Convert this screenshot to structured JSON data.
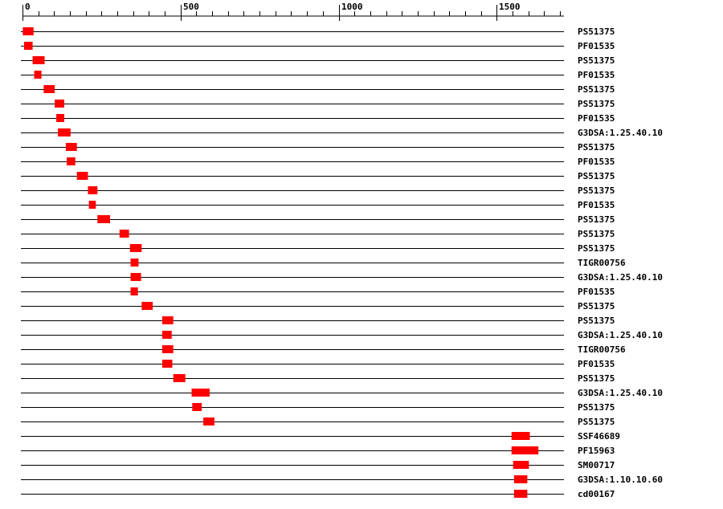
{
  "chart_data": {
    "type": "feature-map",
    "axis": {
      "min": 0,
      "max": 1680,
      "major_ticks": [
        0,
        500,
        1000,
        1500
      ],
      "minor_step": 50
    },
    "bar_color": "#ff0000",
    "line_color": "#000000",
    "tracks": [
      {
        "label": "PS51375",
        "start": 1,
        "end": 35
      },
      {
        "label": "PF01535",
        "start": 5,
        "end": 32
      },
      {
        "label": "PS51375",
        "start": 32,
        "end": 70
      },
      {
        "label": "PF01535",
        "start": 37,
        "end": 60
      },
      {
        "label": "PS51375",
        "start": 67,
        "end": 102
      },
      {
        "label": "PS51375",
        "start": 102,
        "end": 132
      },
      {
        "label": "PF01535",
        "start": 107,
        "end": 132
      },
      {
        "label": "G3DSA:1.25.40.10",
        "start": 112,
        "end": 152
      },
      {
        "label": "PS51375",
        "start": 137,
        "end": 172
      },
      {
        "label": "PF01535",
        "start": 140,
        "end": 167
      },
      {
        "label": "PS51375",
        "start": 172,
        "end": 207
      },
      {
        "label": "PS51375",
        "start": 207,
        "end": 237
      },
      {
        "label": "PF01535",
        "start": 210,
        "end": 232
      },
      {
        "label": "PS51375",
        "start": 237,
        "end": 277
      },
      {
        "label": "PS51375",
        "start": 307,
        "end": 337
      },
      {
        "label": "PS51375",
        "start": 340,
        "end": 377
      },
      {
        "label": "TIGR00756",
        "start": 342,
        "end": 367
      },
      {
        "label": "G3DSA:1.25.40.10",
        "start": 342,
        "end": 375
      },
      {
        "label": "PF01535",
        "start": 342,
        "end": 365
      },
      {
        "label": "PS51375",
        "start": 377,
        "end": 412
      },
      {
        "label": "PS51375",
        "start": 442,
        "end": 477
      },
      {
        "label": "G3DSA:1.25.40.10",
        "start": 442,
        "end": 472
      },
      {
        "label": "TIGR00756",
        "start": 442,
        "end": 477
      },
      {
        "label": "PF01535",
        "start": 442,
        "end": 474
      },
      {
        "label": "PS51375",
        "start": 477,
        "end": 515
      },
      {
        "label": "G3DSA:1.25.40.10",
        "start": 535,
        "end": 592
      },
      {
        "label": "PS51375",
        "start": 537,
        "end": 567
      },
      {
        "label": "PS51375",
        "start": 572,
        "end": 607
      },
      {
        "label": "SSF46689",
        "start": 1547,
        "end": 1605
      },
      {
        "label": "PF15963",
        "start": 1547,
        "end": 1632
      },
      {
        "label": "SM00717",
        "start": 1552,
        "end": 1602
      },
      {
        "label": "G3DSA:1.10.10.60",
        "start": 1555,
        "end": 1597
      },
      {
        "label": "cd00167",
        "start": 1555,
        "end": 1597
      }
    ]
  }
}
